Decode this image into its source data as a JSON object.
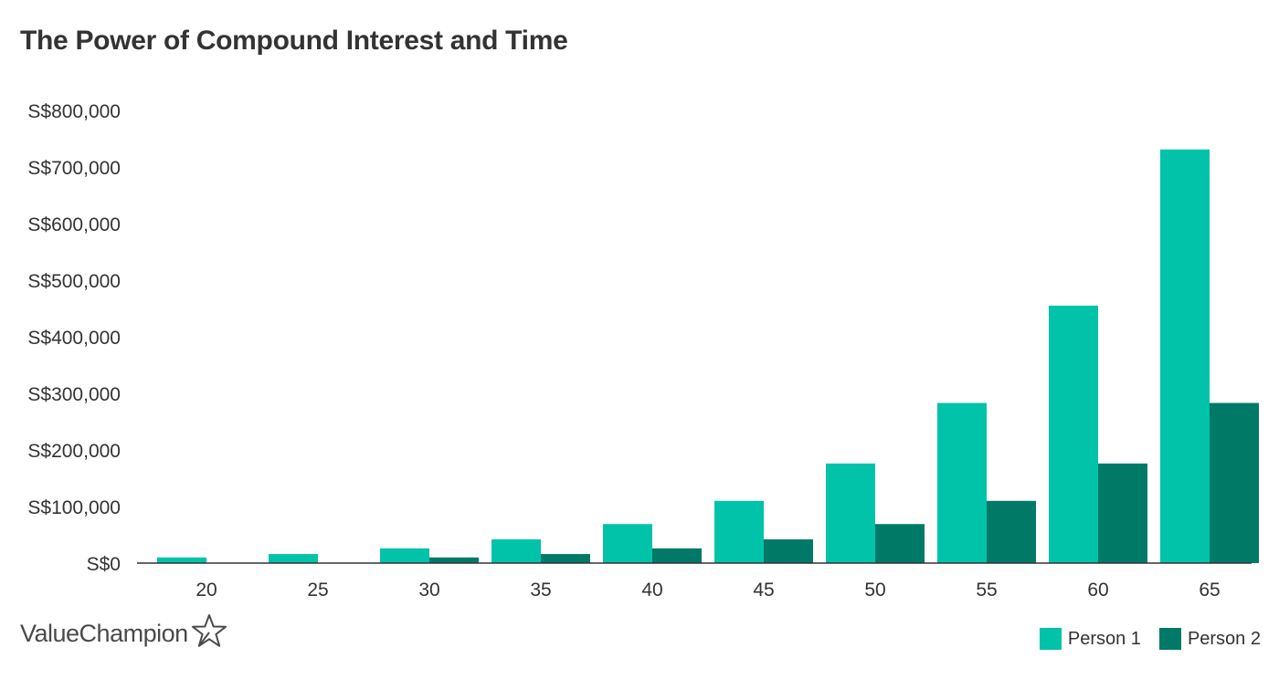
{
  "chart_data": {
    "type": "bar",
    "title": "The Power of Compound Interest and Time",
    "xlabel": "",
    "ylabel": "",
    "categories": [
      "20",
      "25",
      "30",
      "35",
      "40",
      "45",
      "50",
      "55",
      "60",
      "65"
    ],
    "series": [
      {
        "name": "Person 1",
        "color": "#00c3a9",
        "values": [
          10000,
          16000,
          26000,
          42000,
          69000,
          110000,
          176000,
          283000,
          455000,
          731000
        ]
      },
      {
        "name": "Person 2",
        "color": "#007a66",
        "values": [
          0,
          0,
          10000,
          16000,
          26000,
          42000,
          69000,
          110000,
          176000,
          283000
        ]
      }
    ],
    "ylim": [
      0,
      800000
    ],
    "yticks": [
      0,
      100000,
      200000,
      300000,
      400000,
      500000,
      600000,
      700000,
      800000
    ],
    "ytick_labels": [
      "S$0",
      "S$100,000",
      "S$200,000",
      "S$300,000",
      "S$400,000",
      "S$500,000",
      "S$600,000",
      "S$700,000",
      "S$800,000"
    ],
    "grid": false,
    "legend_position": "bottom-right"
  },
  "branding": {
    "logo_text": "ValueChampion",
    "logo_icon": "star-outline-icon"
  },
  "colors": {
    "axis": "#333333",
    "text": "#333333"
  }
}
